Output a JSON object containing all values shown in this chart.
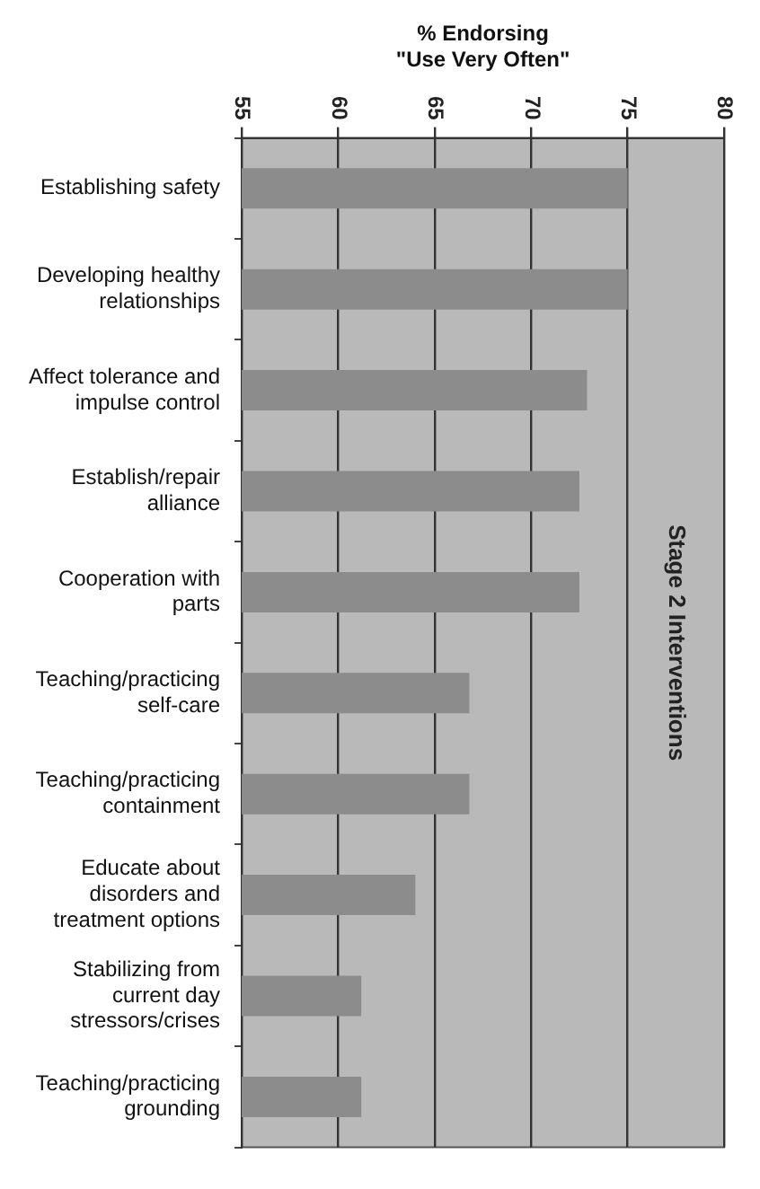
{
  "chart_data": {
    "type": "bar",
    "orientation": "horizontal",
    "xlabel": "% Endorsing\n\"Use Very Often\"",
    "categories": [
      "Establishing safety",
      "Developing healthy relationships",
      "Affect tolerance and impulse control",
      "Establish/repair alliance",
      "Cooperation with parts",
      "Teaching/practicing self-care",
      "Teaching/practicing containment",
      "Educate about disorders and treatment options",
      "Stabilizing from current day stressors/crises",
      "Teaching/practicing grounding"
    ],
    "values": [
      75.0,
      75.0,
      72.9,
      72.5,
      72.5,
      66.8,
      66.8,
      64.0,
      61.2,
      61.2
    ],
    "color": "#8c8c8c",
    "xlim": [
      55,
      80
    ],
    "xticks": [
      55,
      60,
      65,
      70,
      75,
      80
    ],
    "grid": "x",
    "legend": false,
    "annotations": [
      "Stage 2 Interventions"
    ]
  }
}
